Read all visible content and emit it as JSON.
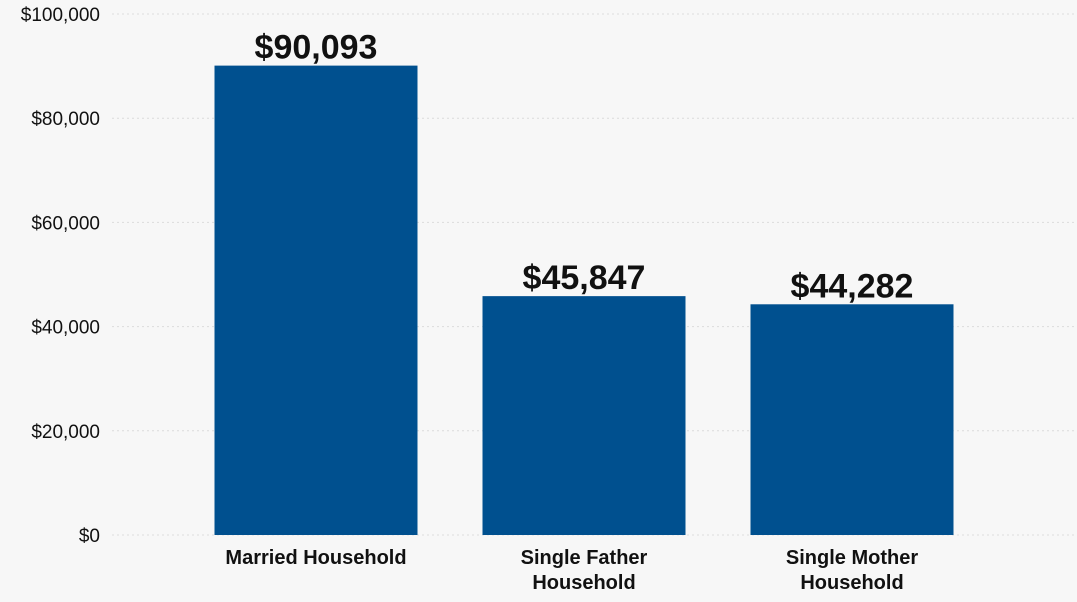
{
  "chart_data": {
    "type": "bar",
    "categories": [
      [
        "Married Household"
      ],
      [
        "Single Father",
        "Household"
      ],
      [
        "Single Mother",
        "Household"
      ]
    ],
    "values": [
      90093,
      45847,
      44282
    ],
    "data_labels": [
      "$90,093",
      "$45,847",
      "$44,282"
    ],
    "ylim": [
      0,
      100000
    ],
    "yticks": [
      0,
      20000,
      40000,
      60000,
      80000,
      100000
    ],
    "ytick_labels": [
      "$0",
      "$20,000",
      "$40,000",
      "$60,000",
      "$80,000",
      "$100,000"
    ],
    "grid": true,
    "bar_color": "#00508f"
  }
}
